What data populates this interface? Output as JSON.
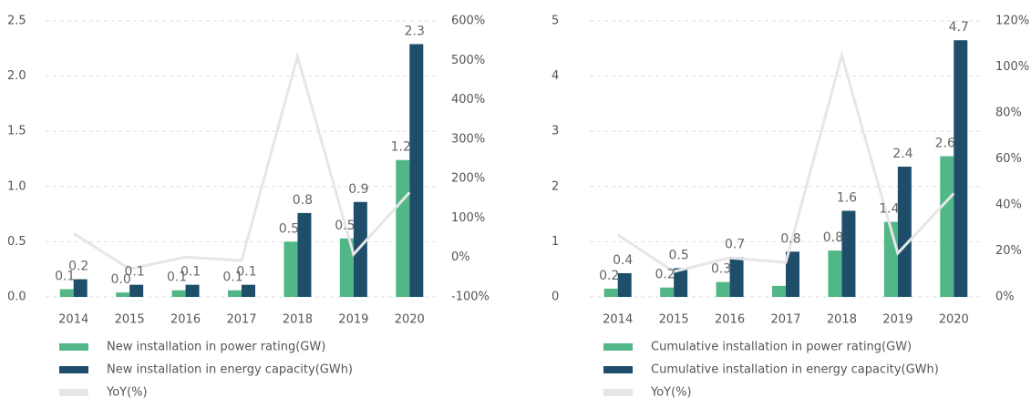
{
  "chart_data": [
    {
      "type": "bar",
      "categories": [
        "2014",
        "2015",
        "2016",
        "2017",
        "2018",
        "2019",
        "2020"
      ],
      "ylim": [
        0,
        2.5
      ],
      "yticks": [
        {
          "value": 0,
          "label": "0.0"
        },
        0.5,
        {
          "value": 1,
          "label": "1.0"
        },
        1.5,
        {
          "value": 2,
          "label": "2.0"
        },
        2.5
      ],
      "y2lim": [
        -100,
        600
      ],
      "y2ticks": [
        {
          "value": -100,
          "label": "-100%"
        },
        {
          "value": 0,
          "label": "0%"
        },
        {
          "value": 100,
          "label": "100%"
        },
        {
          "value": 200,
          "label": "200%"
        },
        {
          "value": 300,
          "label": "300%"
        },
        {
          "value": 400,
          "label": "400%"
        },
        {
          "value": 500,
          "label": "500%"
        },
        {
          "value": 600,
          "label": "600%"
        }
      ],
      "grid": true,
      "series": [
        {
          "name": "New installation in power rating(GW)",
          "color": "#52b788",
          "values": [
            0.07,
            0.04,
            0.06,
            0.06,
            0.5,
            0.53,
            1.24
          ],
          "value_labels": [
            "0.1",
            "0.0",
            "0.1",
            "0.1",
            "0.5",
            "0.5",
            "1.2"
          ]
        },
        {
          "name": "New installation in energy capacity(GWh)",
          "color": "#1f4e6b",
          "values": [
            0.16,
            0.11,
            0.11,
            0.11,
            0.76,
            0.86,
            2.29
          ],
          "value_labels": [
            "0.2",
            "0.1",
            "0.1",
            "0.1",
            "0.8",
            "0.9",
            "2.3"
          ]
        },
        {
          "name": "YoY(%)",
          "color": "#e6e6e6",
          "type": "line",
          "axis": "y2",
          "values": [
            61,
            -29,
            1,
            -8,
            510,
            8,
            165
          ]
        }
      ]
    },
    {
      "type": "bar",
      "categories": [
        "2014",
        "2015",
        "2016",
        "2017",
        "2018",
        "2019",
        "2020"
      ],
      "ylim": [
        0,
        5
      ],
      "yticks": [
        0,
        1,
        2,
        3,
        4,
        5
      ],
      "y2lim": [
        0,
        120
      ],
      "y2ticks": [
        {
          "value": 0,
          "label": "0%"
        },
        {
          "value": 20,
          "label": "20%"
        },
        {
          "value": 40,
          "label": "40%"
        },
        {
          "value": 60,
          "label": "60%"
        },
        {
          "value": 80,
          "label": "80%"
        },
        {
          "value": 100,
          "label": "100%"
        },
        {
          "value": 120,
          "label": "120%"
        }
      ],
      "grid": true,
      "series": [
        {
          "name": "Cumulative installation in power rating(GW)",
          "color": "#52b788",
          "values": [
            0.15,
            0.17,
            0.27,
            0.2,
            0.84,
            1.36,
            2.55
          ],
          "value_labels": [
            "0.2",
            "0.2",
            "0.3",
            null,
            "0.8",
            "1.4",
            "2.6"
          ]
        },
        {
          "name": "Cumulative installation in energy capacity(GWh)",
          "color": "#1f4e6b",
          "values": [
            0.43,
            0.52,
            0.72,
            0.82,
            1.56,
            2.36,
            4.65
          ],
          "value_labels": [
            "0.4",
            "0.5",
            "0.7",
            "0.8",
            "1.6",
            "2.4",
            "4.7"
          ]
        },
        {
          "name": "YoY(%)",
          "color": "#e6e6e6",
          "type": "line",
          "axis": "y2",
          "values": [
            27,
            11,
            17,
            15,
            105,
            19,
            45
          ]
        }
      ]
    }
  ]
}
